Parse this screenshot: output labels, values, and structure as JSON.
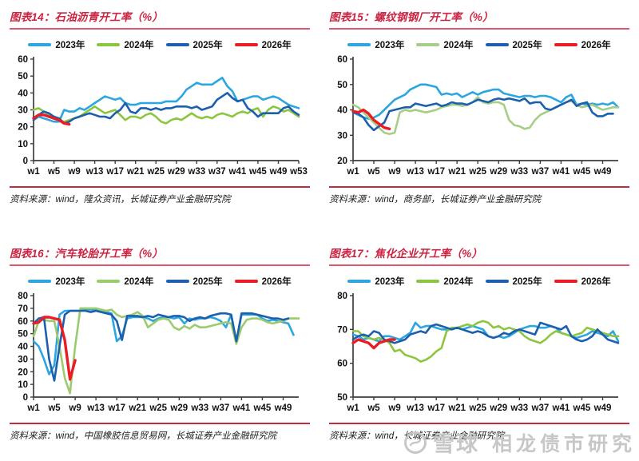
{
  "watermark": {
    "logo": "snowball-logo",
    "site": "雪球",
    "name": "相龙债市研究"
  },
  "chart_data": [
    {
      "type": "line",
      "title": "图表14：石油沥青开工率（%）",
      "source": "资料来源：wind，隆众资讯，长城证券产业金融研究院",
      "xlabel": "",
      "ylabel": "",
      "ylim": [
        0,
        60
      ],
      "yticks": [
        0,
        10,
        20,
        30,
        40,
        50,
        60
      ],
      "xmax": 53,
      "xticks": [
        1,
        5,
        9,
        13,
        17,
        21,
        25,
        29,
        33,
        37,
        41,
        45,
        49,
        53
      ],
      "series": [
        {
          "name": "2023年",
          "color": "#2ba6e0",
          "lw": 2.6,
          "values": [
            24,
            26,
            25,
            24,
            23,
            23,
            30,
            29,
            29,
            31,
            30,
            32,
            34,
            36,
            38,
            37,
            36,
            37,
            34,
            33,
            33,
            34,
            34,
            34,
            34,
            34,
            35,
            35,
            35,
            38,
            42,
            44,
            46,
            45,
            45,
            45,
            47,
            49,
            44,
            41,
            35,
            36,
            37,
            38,
            38,
            36,
            37,
            38,
            37,
            35,
            33,
            32,
            31
          ]
        },
        {
          "name": "2024年",
          "color": "#8cc63f",
          "lw": 2.6,
          "values": [
            30,
            31,
            29,
            27,
            26,
            24,
            23,
            24,
            25,
            26,
            28,
            30,
            32,
            30,
            28,
            29,
            30,
            27,
            24,
            26,
            26,
            25,
            27,
            28,
            26,
            23,
            22,
            24,
            25,
            24,
            26,
            28,
            26,
            25,
            26,
            25,
            27,
            28,
            27,
            26,
            28,
            29,
            28,
            30,
            31,
            26,
            30,
            32,
            31,
            29,
            30,
            28,
            26
          ]
        },
        {
          "name": "2025年",
          "color": "#1c5fae",
          "lw": 2.6,
          "values": [
            24,
            27,
            29,
            28,
            26,
            25,
            22,
            23,
            25,
            26,
            27,
            28,
            27,
            26,
            26,
            25,
            28,
            30,
            34,
            29,
            28,
            31,
            31,
            30,
            31,
            30,
            31,
            31,
            32,
            32,
            32,
            31,
            32,
            30,
            31,
            32,
            36,
            38,
            40,
            37,
            35,
            36,
            31,
            29,
            26,
            28,
            28,
            28,
            28,
            31,
            32,
            29,
            27
          ]
        },
        {
          "name": "2026年",
          "color": "#ec1c24",
          "lw": 3.4,
          "values": [
            25,
            27,
            27,
            26,
            25,
            24,
            22,
            21.5
          ]
        }
      ]
    },
    {
      "type": "line",
      "title": "图表15：螺纹钢钢厂开工率（%）",
      "source": "资料来源：wind，商务部，长城证券产业金融研究院",
      "xlabel": "",
      "ylabel": "",
      "ylim": [
        20,
        60
      ],
      "yticks": [
        20,
        30,
        40,
        50,
        60
      ],
      "xmax": 52,
      "xticks": [
        1,
        5,
        9,
        13,
        17,
        21,
        25,
        29,
        33,
        37,
        41,
        45,
        49
      ],
      "series": [
        {
          "name": "2023年",
          "color": "#2ba6e0",
          "lw": 2.6,
          "values": [
            39,
            38,
            37,
            36.5,
            37,
            38,
            40,
            42,
            44,
            45,
            46,
            48,
            49,
            50,
            50,
            49.5,
            49,
            46,
            46.5,
            46,
            46.5,
            45,
            46,
            47,
            46,
            47,
            47.5,
            48,
            48,
            46.5,
            46,
            45.5,
            45,
            45.5,
            45.5,
            45,
            45.5,
            45.5,
            45,
            44,
            43,
            45,
            46,
            42,
            42.5,
            42,
            42.5,
            42,
            42.5,
            42,
            43,
            41
          ]
        },
        {
          "name": "2024年",
          "color": "#a5ce86",
          "lw": 2.6,
          "values": [
            42,
            41,
            39,
            37,
            35,
            33,
            31,
            30.5,
            31,
            39,
            40,
            39.5,
            40,
            39.5,
            39,
            39.5,
            40,
            41,
            41.5,
            42,
            42,
            41.5,
            42,
            43,
            45,
            43,
            42.5,
            43,
            43,
            42,
            36,
            34,
            33.5,
            32.5,
            33,
            36,
            38,
            39,
            40,
            41,
            42,
            43,
            43.5,
            42,
            41,
            41.5,
            42,
            41,
            40,
            40.5,
            41,
            41
          ]
        },
        {
          "name": "2025年",
          "color": "#1c5fae",
          "lw": 2.6,
          "values": [
            39,
            38.5,
            37,
            34,
            32,
            33.5,
            35,
            39.5,
            40,
            40.5,
            41,
            41,
            42.5,
            42,
            41.5,
            42,
            42.5,
            41.5,
            42,
            43,
            42.5,
            42.5,
            42,
            43,
            44,
            43.5,
            43,
            44,
            44.5,
            44,
            44.5,
            44,
            43.5,
            44.5,
            42.5,
            43,
            43,
            40.5,
            40,
            41,
            42,
            43,
            44,
            41.5,
            42.5,
            43,
            39,
            37.5,
            37.5,
            38.5,
            38.5
          ]
        },
        {
          "name": "2026年",
          "color": "#ec1c24",
          "lw": 3.4,
          "values": [
            39.5,
            39,
            40,
            38.5,
            36,
            34.5,
            33,
            32.5
          ]
        }
      ]
    },
    {
      "type": "line",
      "title": "图表16：汽车轮胎开工率（%）",
      "source": "资料来源：wind，中国橡胶信息贸易网，长城证券产业金融研究院",
      "xlabel": "",
      "ylabel": "",
      "ylim": [
        0,
        80
      ],
      "yticks": [
        0,
        10,
        20,
        30,
        40,
        50,
        60,
        70,
        80
      ],
      "xmax": 52,
      "xticks": [
        1,
        5,
        9,
        13,
        17,
        21,
        25,
        29,
        33,
        37,
        41,
        45,
        49
      ],
      "series": [
        {
          "name": "2023年",
          "color": "#2ba6e0",
          "lw": 2.6,
          "values": [
            44,
            40,
            30,
            18,
            25,
            65,
            68,
            68,
            68,
            68,
            69,
            69,
            68.5,
            68,
            67,
            66,
            44,
            48,
            62,
            63,
            63,
            63,
            62,
            60,
            62,
            63,
            63,
            62,
            63,
            58,
            62,
            61,
            62,
            62,
            63,
            62,
            60,
            55,
            65,
            43,
            65,
            65,
            65,
            65,
            62,
            60,
            61,
            60,
            59,
            58,
            49
          ]
        },
        {
          "name": "2024年",
          "color": "#9bcb6c",
          "lw": 2.6,
          "values": [
            48,
            60,
            61,
            60,
            60,
            40,
            15,
            3,
            40,
            70,
            70,
            70,
            70,
            69,
            68,
            69,
            65,
            63,
            64,
            65,
            67,
            64,
            55,
            58,
            61,
            62,
            61,
            55,
            53,
            56,
            54,
            57,
            55,
            55,
            56,
            57,
            58,
            59,
            58,
            42,
            55,
            61,
            62,
            62,
            61,
            59,
            58,
            59,
            60,
            62,
            62,
            62
          ]
        },
        {
          "name": "2025年",
          "color": "#1c5fae",
          "lw": 2.6,
          "values": [
            58,
            62,
            63,
            30,
            13,
            40,
            65,
            68,
            68,
            68,
            68,
            67,
            68,
            67,
            66,
            65,
            60,
            45,
            64,
            64,
            64,
            63,
            64,
            63,
            65,
            64,
            63,
            64,
            64,
            63,
            60,
            62,
            63,
            62,
            64,
            65,
            66,
            66,
            65,
            44,
            66,
            66,
            66,
            65,
            64,
            63,
            62,
            62,
            61,
            62
          ]
        },
        {
          "name": "2026年",
          "color": "#ec1c24",
          "lw": 3.4,
          "values": [
            58,
            59,
            63,
            63,
            62,
            61,
            45,
            14,
            29
          ]
        }
      ]
    },
    {
      "type": "line",
      "title": "图表17：焦化企业开工率（%）",
      "source": "资料来源：wind，长城证券产业金融研究院",
      "xlabel": "",
      "ylabel": "",
      "ylim": [
        50,
        80
      ],
      "yticks": [
        50,
        60,
        70,
        80
      ],
      "xmax": 52,
      "xticks": [
        1,
        5,
        9,
        13,
        17,
        21,
        25,
        29,
        33,
        37,
        41,
        45,
        49
      ],
      "series": [
        {
          "name": "2023年",
          "color": "#2ba6e0",
          "lw": 2.6,
          "values": [
            68.5,
            68,
            67,
            67.5,
            67,
            66.5,
            68,
            68,
            67.5,
            67,
            68,
            69,
            72,
            70.5,
            71,
            71,
            70.5,
            70,
            70,
            70,
            70.5,
            70,
            70.5,
            71,
            70.5,
            70,
            68,
            67.5,
            68,
            67.5,
            68,
            69,
            70,
            70.5,
            71,
            71,
            70.5,
            70.5,
            71,
            70.5,
            69,
            68.5,
            68,
            67.5,
            68,
            68.5,
            69.5,
            69,
            68.5,
            68,
            69.5,
            66.5
          ]
        },
        {
          "name": "2024年",
          "color": "#8cc63f",
          "lw": 2.6,
          "values": [
            69.5,
            69.5,
            68,
            67.5,
            67,
            67.5,
            67,
            66,
            63.5,
            64,
            62.5,
            62,
            61.5,
            60.5,
            61,
            62,
            63.5,
            64.5,
            69.5,
            70.5,
            70.5,
            71,
            71.5,
            71,
            72,
            72.5,
            72,
            70.5,
            71,
            70,
            70.5,
            70,
            69.5,
            68,
            67,
            66.5,
            66,
            67,
            68.5,
            69.5,
            69,
            68.5,
            68,
            68.5,
            69,
            70.5,
            70,
            69.5,
            69,
            68.5,
            68,
            68
          ]
        },
        {
          "name": "2025年",
          "color": "#1c5fae",
          "lw": 2.6,
          "values": [
            67,
            68,
            68.5,
            68,
            69.5,
            69,
            67,
            66.5,
            66,
            66.5,
            67,
            68.5,
            69,
            69.5,
            69,
            71,
            71.5,
            71,
            70.5,
            70,
            70.5,
            70,
            69.5,
            69,
            69.5,
            69,
            68,
            67.5,
            68,
            69,
            68.5,
            69.5,
            70,
            69.5,
            69,
            68.5,
            72,
            71.5,
            71,
            70.5,
            70,
            71,
            68,
            67,
            66.5,
            67,
            68,
            70,
            68.5,
            67,
            66.5,
            66
          ]
        },
        {
          "name": "2026年",
          "color": "#ec1c24",
          "lw": 3.4,
          "values": [
            66,
            67,
            66.5,
            66,
            64.5,
            66,
            66.5,
            67,
            67
          ]
        }
      ]
    }
  ]
}
